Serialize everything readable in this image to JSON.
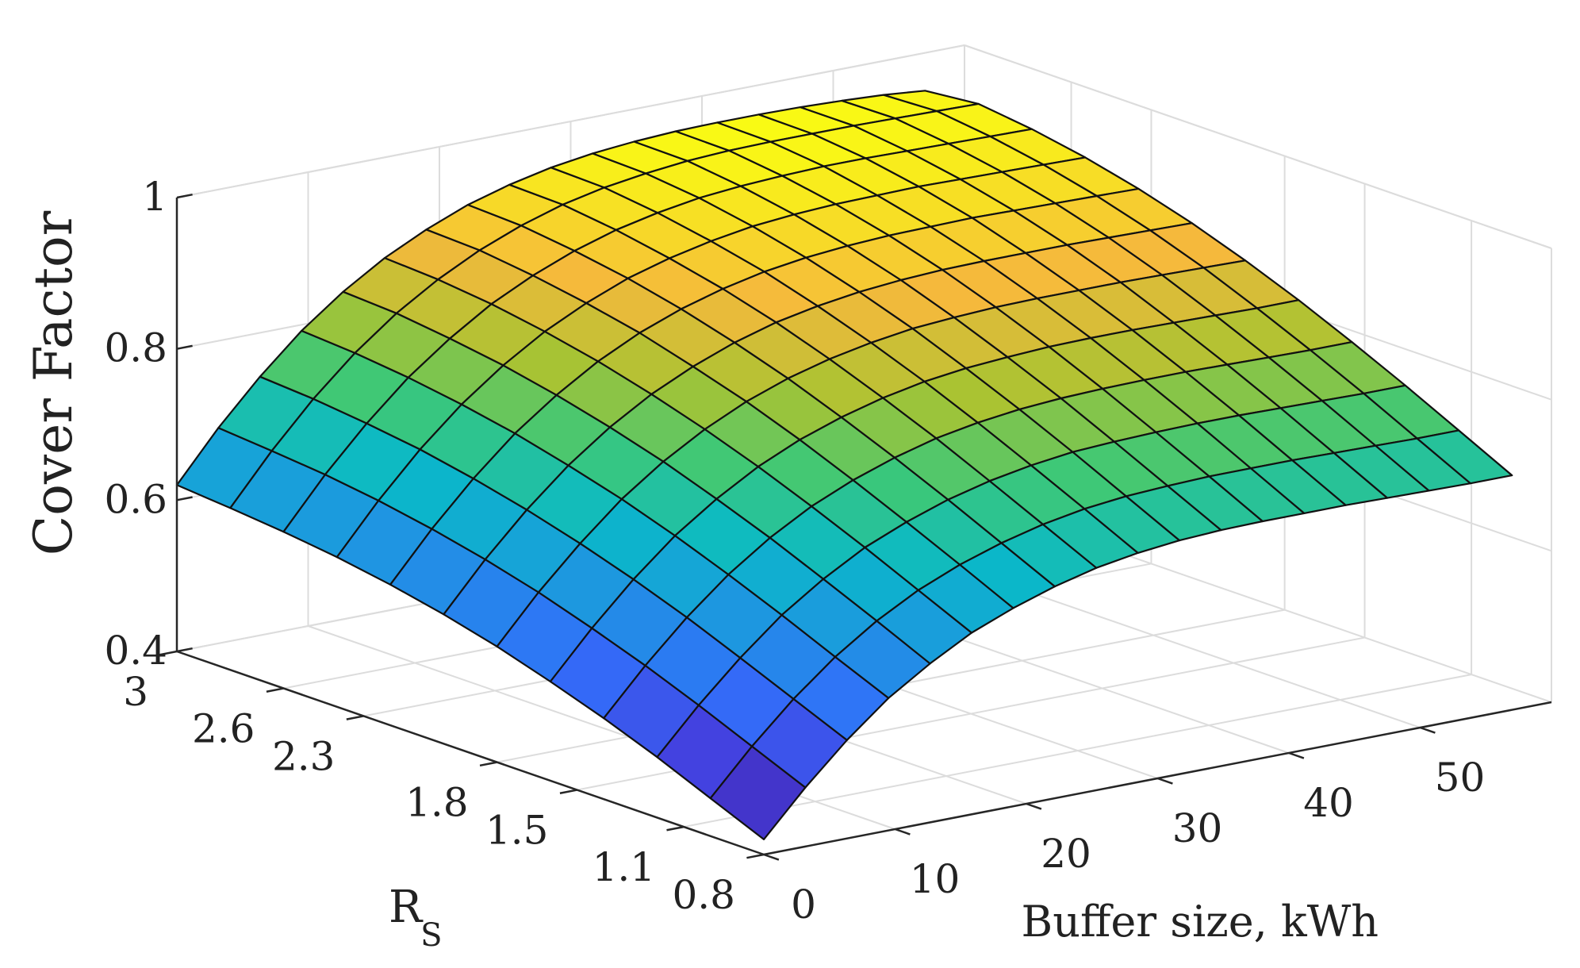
{
  "chart_data": {
    "type": "surface",
    "zlabel": "Cover Factor",
    "xlabel": "Buffer size, kWh",
    "ylabel_main": "R",
    "ylabel_sub": "S",
    "xlim": [
      0,
      60
    ],
    "ylim": [
      0.8,
      3.0
    ],
    "zlim": [
      0.4,
      1.0
    ],
    "x_ticks": [
      "0",
      "10",
      "20",
      "30",
      "40",
      "50"
    ],
    "y_ticks": [
      "0.8",
      "1.1",
      "1.5",
      "1.8",
      "2.3",
      "2.6",
      "3"
    ],
    "z_ticks": [
      "0.4",
      "0.6",
      "0.8",
      "1"
    ],
    "grid": true,
    "colormap": "parula",
    "grid_size": {
      "x_points": 19,
      "y_points": 12
    },
    "corner_values": [
      {
        "x": 0,
        "y": 0.8,
        "z": 0.42
      },
      {
        "x": 0,
        "y": 3.0,
        "z": 0.62
      },
      {
        "x": 57,
        "y": 0.8,
        "z": 0.71
      },
      {
        "x": 57,
        "y": 3.0,
        "z": 0.95
      }
    ],
    "surface_z": [
      [
        0.42,
        0.478,
        0.53,
        0.575,
        0.61,
        0.64,
        0.662,
        0.68,
        0.694,
        0.703,
        0.709,
        0.712,
        0.713,
        0.713,
        0.713,
        0.712,
        0.711,
        0.71,
        0.71
      ],
      [
        0.45,
        0.508,
        0.56,
        0.605,
        0.642,
        0.672,
        0.695,
        0.713,
        0.727,
        0.737,
        0.743,
        0.746,
        0.748,
        0.748,
        0.748,
        0.747,
        0.746,
        0.745,
        0.745
      ],
      [
        0.48,
        0.538,
        0.59,
        0.636,
        0.673,
        0.704,
        0.727,
        0.746,
        0.76,
        0.77,
        0.777,
        0.78,
        0.782,
        0.783,
        0.783,
        0.782,
        0.781,
        0.78,
        0.78
      ],
      [
        0.507,
        0.566,
        0.619,
        0.665,
        0.703,
        0.734,
        0.758,
        0.777,
        0.792,
        0.802,
        0.809,
        0.813,
        0.815,
        0.816,
        0.816,
        0.815,
        0.814,
        0.813,
        0.813
      ],
      [
        0.531,
        0.591,
        0.645,
        0.692,
        0.73,
        0.762,
        0.787,
        0.806,
        0.821,
        0.832,
        0.839,
        0.843,
        0.846,
        0.847,
        0.847,
        0.846,
        0.845,
        0.844,
        0.844
      ],
      [
        0.553,
        0.614,
        0.668,
        0.716,
        0.755,
        0.787,
        0.813,
        0.833,
        0.848,
        0.859,
        0.867,
        0.871,
        0.874,
        0.875,
        0.875,
        0.875,
        0.874,
        0.873,
        0.872
      ],
      [
        0.571,
        0.633,
        0.688,
        0.736,
        0.776,
        0.809,
        0.835,
        0.856,
        0.872,
        0.883,
        0.891,
        0.896,
        0.899,
        0.9,
        0.9,
        0.9,
        0.899,
        0.898,
        0.897
      ],
      [
        0.586,
        0.649,
        0.705,
        0.754,
        0.794,
        0.828,
        0.855,
        0.876,
        0.892,
        0.904,
        0.912,
        0.917,
        0.92,
        0.921,
        0.922,
        0.921,
        0.92,
        0.919,
        0.918
      ],
      [
        0.598,
        0.662,
        0.719,
        0.768,
        0.809,
        0.843,
        0.87,
        0.892,
        0.908,
        0.92,
        0.929,
        0.934,
        0.937,
        0.938,
        0.939,
        0.938,
        0.937,
        0.936,
        0.935
      ],
      [
        0.607,
        0.672,
        0.729,
        0.779,
        0.82,
        0.855,
        0.882,
        0.904,
        0.921,
        0.933,
        0.942,
        0.947,
        0.95,
        0.952,
        0.952,
        0.951,
        0.95,
        0.949,
        0.948
      ],
      [
        0.614,
        0.679,
        0.737,
        0.787,
        0.829,
        0.863,
        0.891,
        0.913,
        0.93,
        0.942,
        0.95,
        0.956,
        0.959,
        0.96,
        0.96,
        0.96,
        0.959,
        0.958,
        0.957
      ],
      [
        0.62,
        0.685,
        0.742,
        0.792,
        0.833,
        0.867,
        0.894,
        0.916,
        0.932,
        0.944,
        0.952,
        0.957,
        0.96,
        0.961,
        0.961,
        0.96,
        0.958,
        0.955,
        0.95
      ]
    ]
  }
}
